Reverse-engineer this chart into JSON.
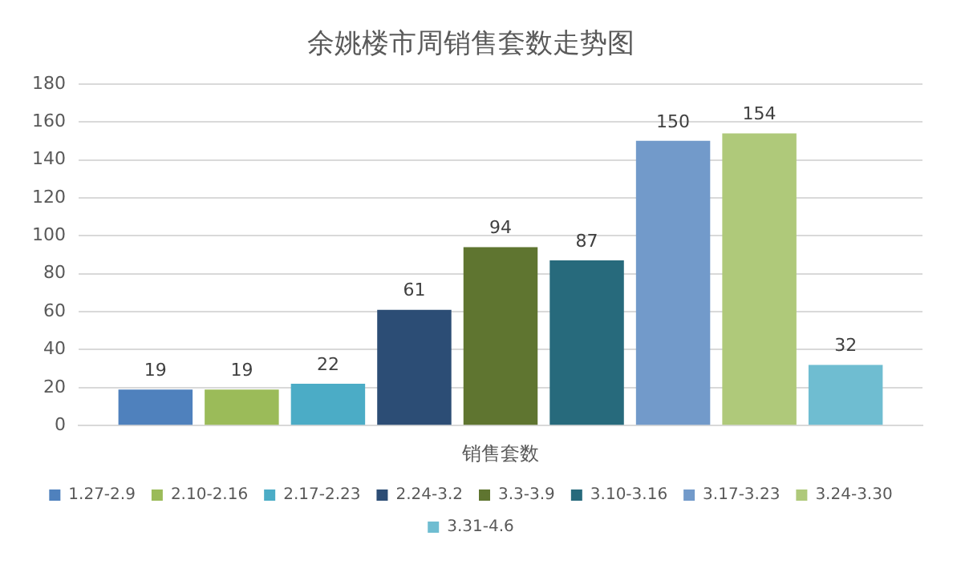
{
  "chart_data": {
    "type": "bar",
    "title": "余姚楼市周销售套数走势图",
    "categories": [
      "销售套数"
    ],
    "series": [
      {
        "name": "1.27-2.9",
        "color": "#4f81bd",
        "values": [
          19
        ]
      },
      {
        "name": "2.10-2.16",
        "color": "#9bbb59",
        "values": [
          19
        ]
      },
      {
        "name": "2.17-2.23",
        "color": "#4bacc6",
        "values": [
          22
        ]
      },
      {
        "name": "2.24-3.2",
        "color": "#2c4d75",
        "values": [
          61
        ]
      },
      {
        "name": "3.3-3.9",
        "color": "#5f7530",
        "values": [
          94
        ]
      },
      {
        "name": "3.10-3.16",
        "color": "#276a7c",
        "values": [
          87
        ]
      },
      {
        "name": "3.17-3.23",
        "color": "#729aca",
        "values": [
          150
        ]
      },
      {
        "name": "3.24-3.30",
        "color": "#afc97a",
        "values": [
          154
        ]
      },
      {
        "name": "3.31-4.6",
        "color": "#6fbdd1",
        "values": [
          32
        ]
      }
    ],
    "ylim": [
      0,
      180
    ],
    "yticks": [
      0,
      20,
      40,
      60,
      80,
      100,
      120,
      140,
      160,
      180
    ],
    "grid": "y",
    "legend": "bottom",
    "data_labels": true
  }
}
